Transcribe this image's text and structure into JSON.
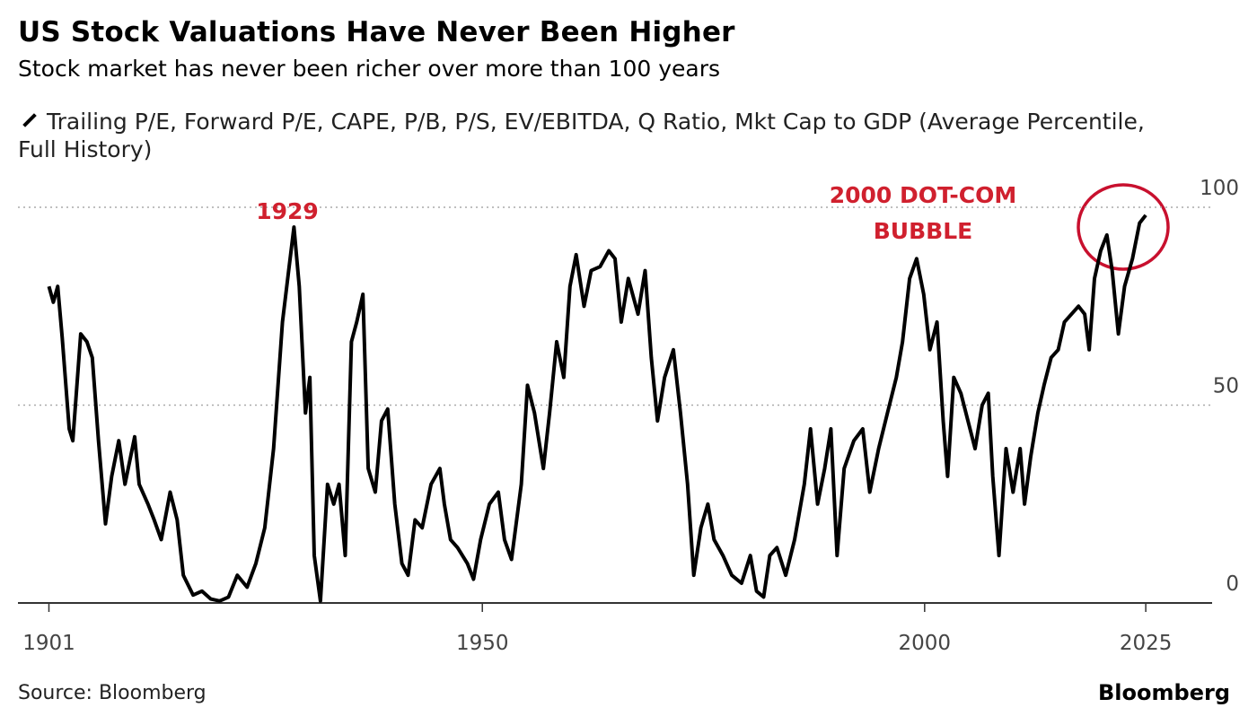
{
  "chart_data": {
    "type": "line",
    "title": "US Stock Valuations Have Never Been Higher",
    "subtitle": "Stock market has never been richer over more than 100 years",
    "source": "Source: Bloomberg",
    "logo": "Bloomberg",
    "annotations": [
      "1929",
      "2000 DOT-COM",
      "BUBBLE"
    ],
    "xlim": [
      1897.5,
      2032.5
    ],
    "xticks": [
      1901,
      1950,
      2000,
      2025
    ],
    "ylim": [
      0,
      100
    ],
    "yticks": [
      0,
      50,
      100
    ],
    "grid": true,
    "x": [
      1901,
      1901.5,
      1902,
      1902.5,
      1903.3,
      1903.7,
      1904.6,
      1905.3,
      1905.9,
      1906.6,
      1907.4,
      1908.1,
      1908.9,
      1909.6,
      1910.7,
      1911.2,
      1912.2,
      1912.9,
      1913.7,
      1914.7,
      1915.5,
      1916.2,
      1917.3,
      1918.3,
      1919.3,
      1920.3,
      1921.3,
      1922.3,
      1923.4,
      1924.4,
      1925.4,
      1926.4,
      1927.4,
      1928.1,
      1928.7,
      1929.3,
      1930,
      1930.5,
      1931,
      1931.7,
      1932.5,
      1933.2,
      1933.8,
      1934.5,
      1935.2,
      1935.8,
      1936.5,
      1937.1,
      1937.9,
      1938.6,
      1939.3,
      1940.1,
      1940.9,
      1941.6,
      1942.4,
      1943.2,
      1944.2,
      1945.2,
      1945.7,
      1946.4,
      1947.2,
      1948.3,
      1949,
      1949.8,
      1950.8,
      1951.8,
      1952.5,
      1953.3,
      1954.4,
      1955.1,
      1955.9,
      1956.9,
      1957.6,
      1958.4,
      1959.2,
      1959.9,
      1960.6,
      1961.5,
      1962.3,
      1963.3,
      1964.3,
      1965,
      1965.7,
      1966.5,
      1967.6,
      1968.4,
      1969.1,
      1969.8,
      1970.6,
      1971.6,
      1972.4,
      1973.2,
      1973.9,
      1974.7,
      1975.5,
      1976.2,
      1977.2,
      1978.2,
      1979.3,
      1980.3,
      1981,
      1981.8,
      1982.5,
      1983.3,
      1984.3,
      1985.3,
      1986.4,
      1987.1,
      1987.9,
      1988.7,
      1989.4,
      1990.1,
      1990.9,
      1992,
      1993,
      1993.8,
      1994.8,
      1995.8,
      1996.8,
      1997.5,
      1998.3,
      1999.1,
      1999.9,
      2000.6,
      2001.4,
      2002.1,
      2002.6,
      2003.3,
      2004.1,
      2004.9,
      2005.7,
      2006.5,
      2007.2,
      2007.7,
      2008.4,
      2009.2,
      2010,
      2010.8,
      2011.3,
      2012,
      2012.8,
      2013.5,
      2014.3,
      2015.1,
      2015.8,
      2016.6,
      2017.4,
      2018.1,
      2018.6,
      2019.2,
      2019.9,
      2020.6,
      2021.2,
      2021.9,
      2022.6,
      2023.5,
      2024.3,
      2025
    ],
    "series": [
      {
        "name": "Trailing P/E, Forward P/E, CAPE, P/B, P/S, EV/EBITDA, Q Ratio, Mkt Cap to GDP (Average Percentile, Full History)",
        "color": "#000000",
        "values": [
          80,
          76,
          80,
          67,
          44,
          41,
          68,
          66,
          62,
          41,
          20,
          32,
          41,
          30,
          42,
          30,
          25,
          21,
          16,
          28,
          21,
          7,
          2,
          3,
          1,
          0.5,
          1.5,
          7,
          4,
          10,
          19,
          39,
          71,
          84,
          95,
          80,
          48,
          57,
          12,
          0.5,
          30,
          25,
          30,
          12,
          66,
          71,
          78,
          34,
          28,
          46,
          49,
          25,
          10,
          7,
          21,
          19,
          30,
          34,
          25,
          16,
          14,
          10,
          6,
          16,
          25,
          28,
          16,
          11,
          30,
          55,
          48,
          34,
          48,
          66,
          57,
          80,
          88,
          75,
          84,
          85,
          89,
          87,
          71,
          82,
          73,
          84,
          62,
          46,
          57,
          64,
          48,
          30,
          7,
          19,
          25,
          16,
          12,
          7,
          5,
          12,
          3,
          1.5,
          12,
          14,
          7,
          16,
          30,
          44,
          25,
          34,
          44,
          12,
          34,
          41,
          44,
          28,
          39,
          48,
          57,
          66,
          82,
          87,
          78,
          64,
          71,
          46,
          32,
          57,
          53,
          46,
          39,
          50,
          53,
          32,
          12,
          39,
          28,
          39,
          25,
          37,
          48,
          55,
          62,
          64,
          71,
          73,
          75,
          73,
          64,
          82,
          89,
          93,
          84,
          68,
          80,
          87,
          96,
          98
        ]
      }
    ]
  }
}
